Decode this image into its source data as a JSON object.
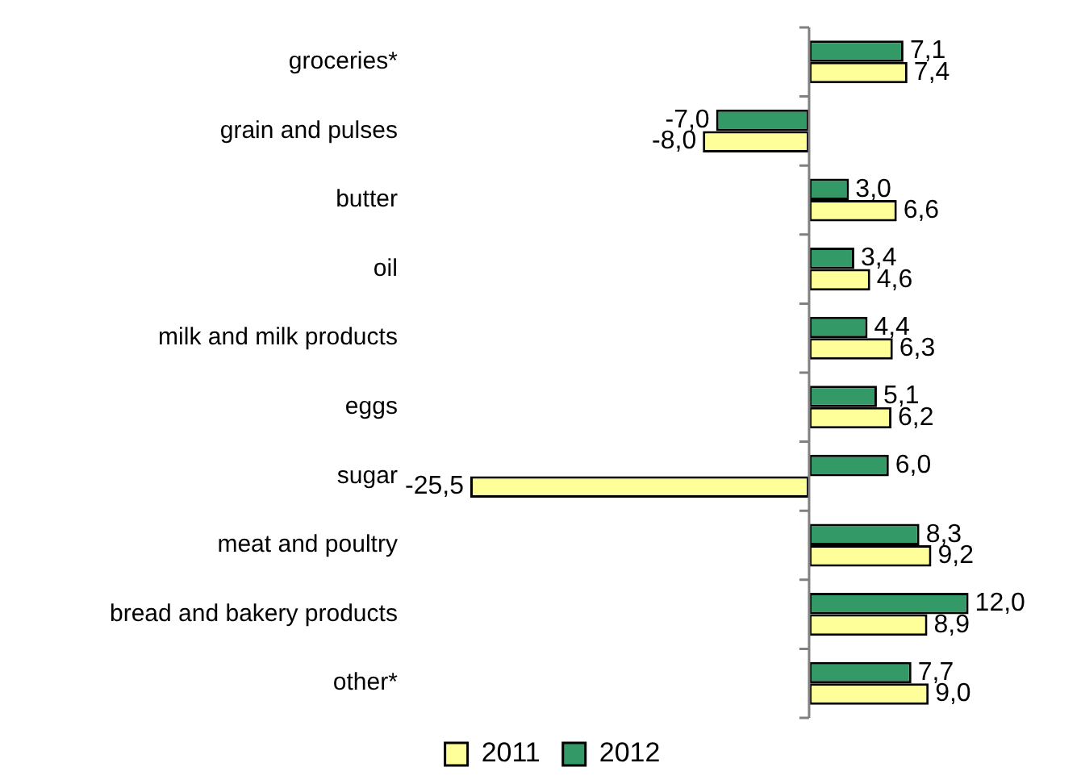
{
  "chart_data": {
    "type": "bar",
    "orientation": "horizontal",
    "categories": [
      "groceries*",
      "grain and pulses",
      "butter",
      "oil",
      "milk and milk products",
      "eggs",
      "sugar",
      "meat and poultry",
      "bread and bakery products",
      "other*"
    ],
    "series": [
      {
        "name": "2011",
        "color": "#ffff99",
        "values": [
          7.4,
          -8.0,
          6.6,
          4.6,
          6.3,
          6.2,
          -25.5,
          9.2,
          8.9,
          9.0
        ],
        "value_labels": [
          "7,4",
          "-8,0",
          "6,6",
          "4,6",
          "6,3",
          "6,2",
          "-25,5",
          "9,2",
          "8,9",
          "9,0"
        ]
      },
      {
        "name": "2012",
        "color": "#339966",
        "values": [
          7.1,
          -7.0,
          3.0,
          3.4,
          4.4,
          5.1,
          6.0,
          8.3,
          12.0,
          7.7
        ],
        "value_labels": [
          "7,1",
          "-7,0",
          "3,0",
          "3,4",
          "4,4",
          "5,1",
          "6,0",
          "8,3",
          "12,0",
          "7,7"
        ]
      }
    ],
    "legend": "bottom"
  }
}
